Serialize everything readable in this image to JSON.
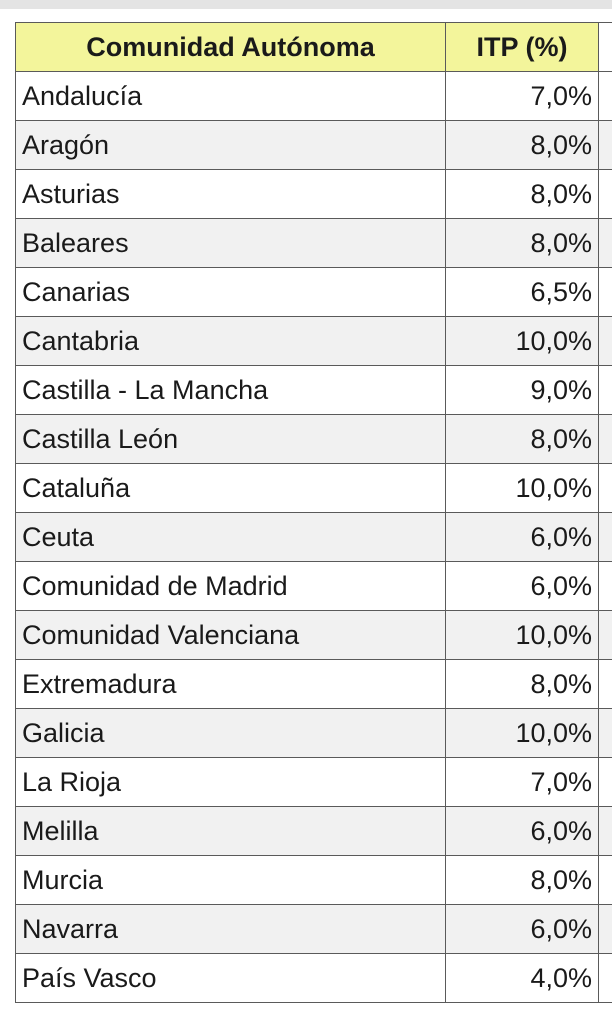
{
  "table": {
    "header": [
      "Comunidad Autónoma",
      "ITP (%)"
    ],
    "rows": [
      [
        "Andalucía",
        "7,0%"
      ],
      [
        "Aragón",
        "8,0%"
      ],
      [
        "Asturias",
        "8,0%"
      ],
      [
        "Baleares",
        "8,0%"
      ],
      [
        "Canarias",
        "6,5%"
      ],
      [
        "Cantabria",
        "10,0%"
      ],
      [
        "Castilla - La Mancha",
        "9,0%"
      ],
      [
        "Castilla León",
        "8,0%"
      ],
      [
        "Cataluña",
        "10,0%"
      ],
      [
        "Ceuta",
        "6,0%"
      ],
      [
        "Comunidad de Madrid",
        "6,0%"
      ],
      [
        "Comunidad Valenciana",
        "10,0%"
      ],
      [
        "Extremadura",
        "8,0%"
      ],
      [
        "Galicia",
        "10,0%"
      ],
      [
        "La Rioja",
        "7,0%"
      ],
      [
        "Melilla",
        "6,0%"
      ],
      [
        "Murcia",
        "8,0%"
      ],
      [
        "Navarra",
        "6,0%"
      ],
      [
        "País Vasco",
        "4,0%"
      ]
    ]
  }
}
